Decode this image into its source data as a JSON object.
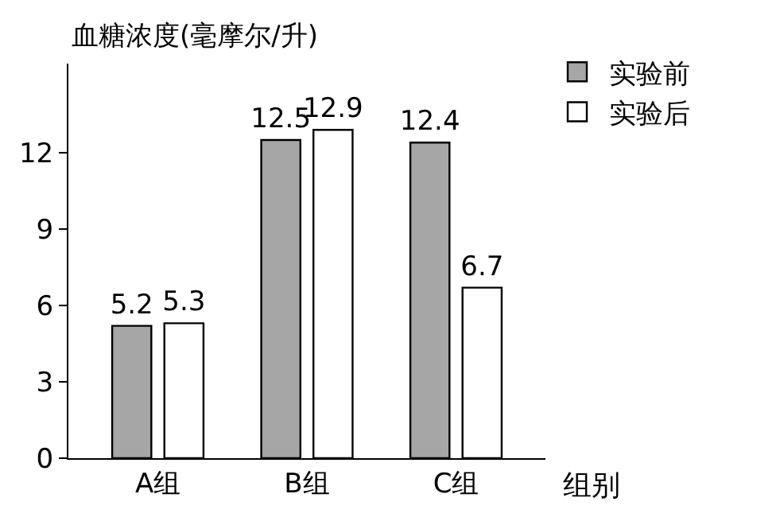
{
  "chart_data": {
    "type": "bar",
    "ylabel": "血糖浓度(毫摩尔/升)",
    "xlabel": "组别",
    "categories": [
      "A组",
      "B组",
      "C组"
    ],
    "series": [
      {
        "name": "实验前",
        "color": "#a6a6a6",
        "values": [
          5.2,
          12.5,
          12.4
        ]
      },
      {
        "name": "实验后",
        "color": "#ffffff",
        "values": [
          5.3,
          12.9,
          6.7
        ]
      }
    ],
    "ylim": [
      0,
      15.5
    ],
    "yticks": [
      0,
      3,
      6,
      9,
      12
    ],
    "data_labels": true,
    "legend": "top right"
  }
}
